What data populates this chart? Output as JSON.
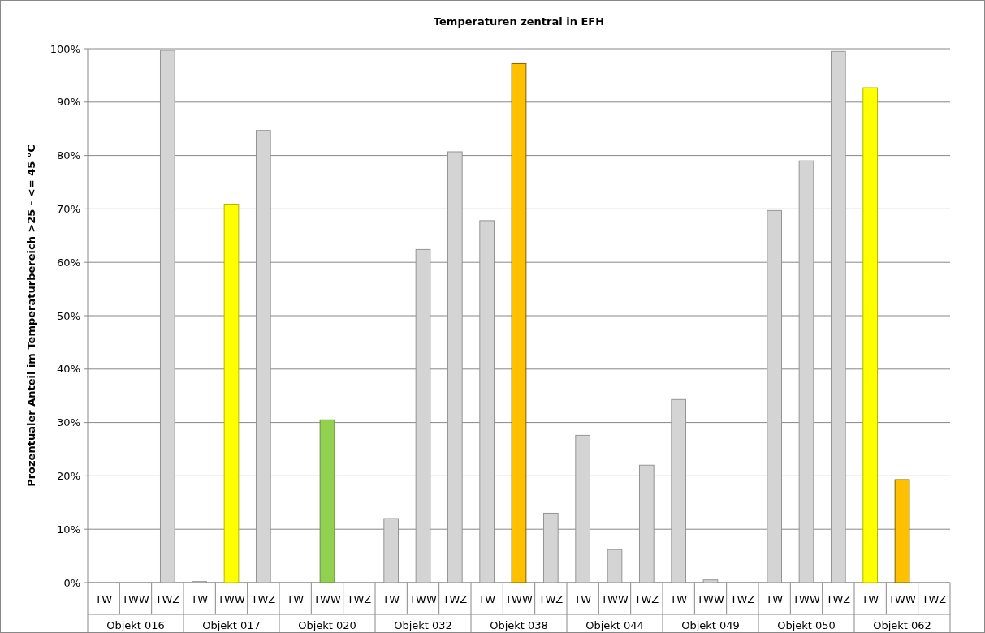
{
  "chart_data": {
    "type": "bar",
    "title": "Temperaturen  zentral  in  EFH",
    "ylabel": "Prozentualer  Anteil  im  Temperaturbereich   >25 - <= 45 °C",
    "categories": [
      "TW",
      "TWW",
      "TWZ",
      "TW",
      "TWW",
      "TWZ",
      "TW",
      "TWW",
      "TWZ",
      "TW",
      "TWW",
      "TWZ",
      "TW",
      "TWW",
      "TWZ",
      "TW",
      "TWW",
      "TWZ",
      "TW",
      "TWW",
      "TWZ",
      "TW",
      "TWW",
      "TWZ",
      "TW",
      "TWW",
      "TWZ"
    ],
    "annotations": [
      "Objekt 016",
      "Objekt 017",
      "Objekt 020",
      "Objekt 032",
      "Objekt 038",
      "Objekt 044",
      "Objekt 049",
      "Objekt 050",
      "Objekt 062"
    ],
    "values": [
      0,
      0,
      99.7,
      0.2,
      70.9,
      84.7,
      0,
      30.5,
      0,
      12.0,
      62.4,
      80.7,
      67.8,
      97.2,
      13.0,
      27.6,
      6.2,
      22.0,
      34.3,
      0.5,
      0,
      69.7,
      79.0,
      99.5,
      92.7,
      19.3,
      0
    ],
    "colors": [
      "#d4d4d4",
      "#d4d4d4",
      "#d4d4d4",
      "#d4d4d4",
      "#ffff00",
      "#d4d4d4",
      "#d4d4d4",
      "#92d050",
      "#d4d4d4",
      "#d4d4d4",
      "#d4d4d4",
      "#d4d4d4",
      "#d4d4d4",
      "#ffc000",
      "#d4d4d4",
      "#d4d4d4",
      "#d4d4d4",
      "#d4d4d4",
      "#d4d4d4",
      "#d4d4d4",
      "#d4d4d4",
      "#d4d4d4",
      "#d4d4d4",
      "#d4d4d4",
      "#ffff00",
      "#ffc000",
      "#d4d4d4"
    ],
    "ylim": [
      0,
      100
    ],
    "yticks": [
      {
        "value": 0,
        "label": "0%"
      },
      {
        "value": 10,
        "label": "10%"
      },
      {
        "value": 20,
        "label": "20%"
      },
      {
        "value": 30,
        "label": "30%"
      },
      {
        "value": 40,
        "label": "40%"
      },
      {
        "value": 50,
        "label": "50%"
      },
      {
        "value": 60,
        "label": "60%"
      },
      {
        "value": 70,
        "label": "70%"
      },
      {
        "value": 80,
        "label": "80%"
      },
      {
        "value": 90,
        "label": "90%"
      },
      {
        "value": 100,
        "label": "100%"
      }
    ],
    "grid": "y"
  }
}
